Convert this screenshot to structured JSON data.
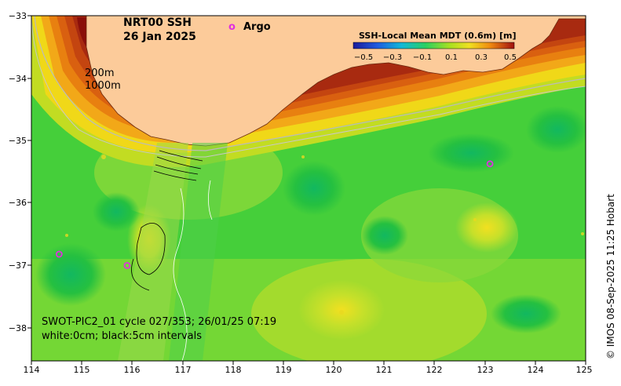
{
  "title": {
    "line1": "NRT00 SSH",
    "line2": "26 Jan 2025"
  },
  "legend": {
    "argo_marker": "o",
    "argo_label": "Argo"
  },
  "depth_labels": [
    "200m",
    "1000m"
  ],
  "colorbar": {
    "title": "SSH-Local Mean MDT (0.6m) [m]",
    "ticks": [
      "−0.5",
      "−0.3",
      "−0.1",
      "0.1",
      "0.3",
      "0.5"
    ]
  },
  "swath_info": {
    "line1": "SWOT-PIC2_01 cycle 027/353; 26/01/25 07:19",
    "line2": "white:0cm; black:5cm intervals"
  },
  "credit": "© IMOS 08-Sep-2025 11:25 Hobart",
  "axes": {
    "x_ticks": [
      "114",
      "115",
      "116",
      "117",
      "118",
      "119",
      "120",
      "121",
      "122",
      "123",
      "124",
      "125"
    ],
    "y_ticks": [
      "−33",
      "−34",
      "−35",
      "−36",
      "−37",
      "−38"
    ]
  },
  "colors": {
    "land": "#fccb9a",
    "sea_green": "#3ccf3c",
    "argo": "#e030e0"
  },
  "argo_floats": [
    {
      "lon": 114.55,
      "lat": -36.8
    },
    {
      "lon": 115.9,
      "lat": -36.98
    },
    {
      "lon": 123.1,
      "lat": -35.36
    }
  ]
}
